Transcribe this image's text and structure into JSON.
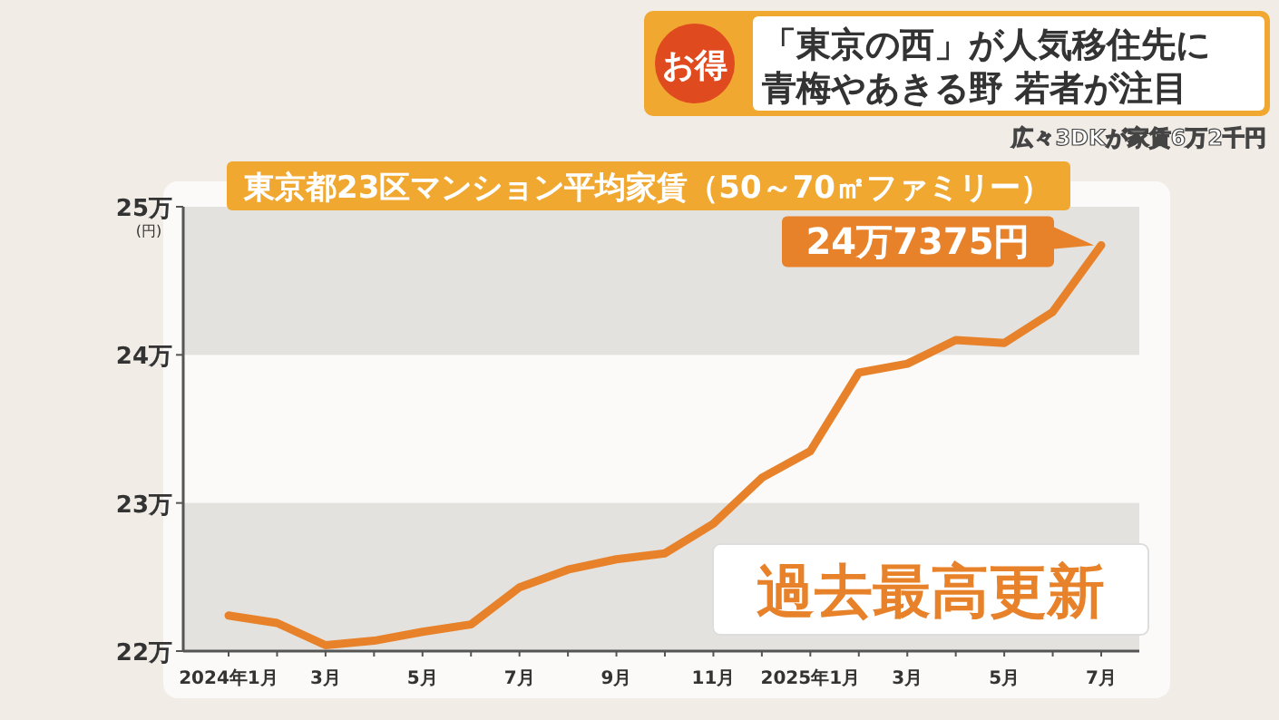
{
  "chart_data": {
    "type": "line",
    "title": "東京都23区マンション平均家賃（50～70㎡ファミリー）",
    "ylabel": "(円)",
    "categories": [
      "2024年1月",
      null,
      "3月",
      null,
      "5月",
      null,
      "7月",
      null,
      "9月",
      null,
      "11月",
      null,
      "2025年1月",
      null,
      "3月",
      null,
      "5月",
      null,
      "7月"
    ],
    "series": [
      {
        "color": "#e8822a",
        "values": [
          22.24,
          22.19,
          22.04,
          22.07,
          22.13,
          22.18,
          22.43,
          22.55,
          22.62,
          22.66,
          22.86,
          23.17,
          23.35,
          23.88,
          23.94,
          24.1,
          24.08,
          24.29,
          24.74
        ]
      }
    ],
    "ylim": [
      22,
      25
    ],
    "yticks": [
      {
        "value": 22,
        "label": "22万"
      },
      {
        "value": 23,
        "label": "23万"
      },
      {
        "value": 24,
        "label": "24万"
      },
      {
        "value": 25,
        "label": "25万"
      }
    ],
    "bands": [
      {
        "axis": "y",
        "from": 22,
        "to": 23,
        "color": "#e4e2df"
      },
      {
        "axis": "y",
        "from": 24,
        "to": 25,
        "color": "#e4e2df"
      }
    ],
    "marker": "none",
    "line_style": "solid",
    "annotations": [
      "過去最高更新",
      "24万7375円",
      "お得",
      "「東京の西」が人気移住先に",
      "青梅やあきる野 若者が注目",
      "広々3DKが家賃6万2千円"
    ]
  }
}
